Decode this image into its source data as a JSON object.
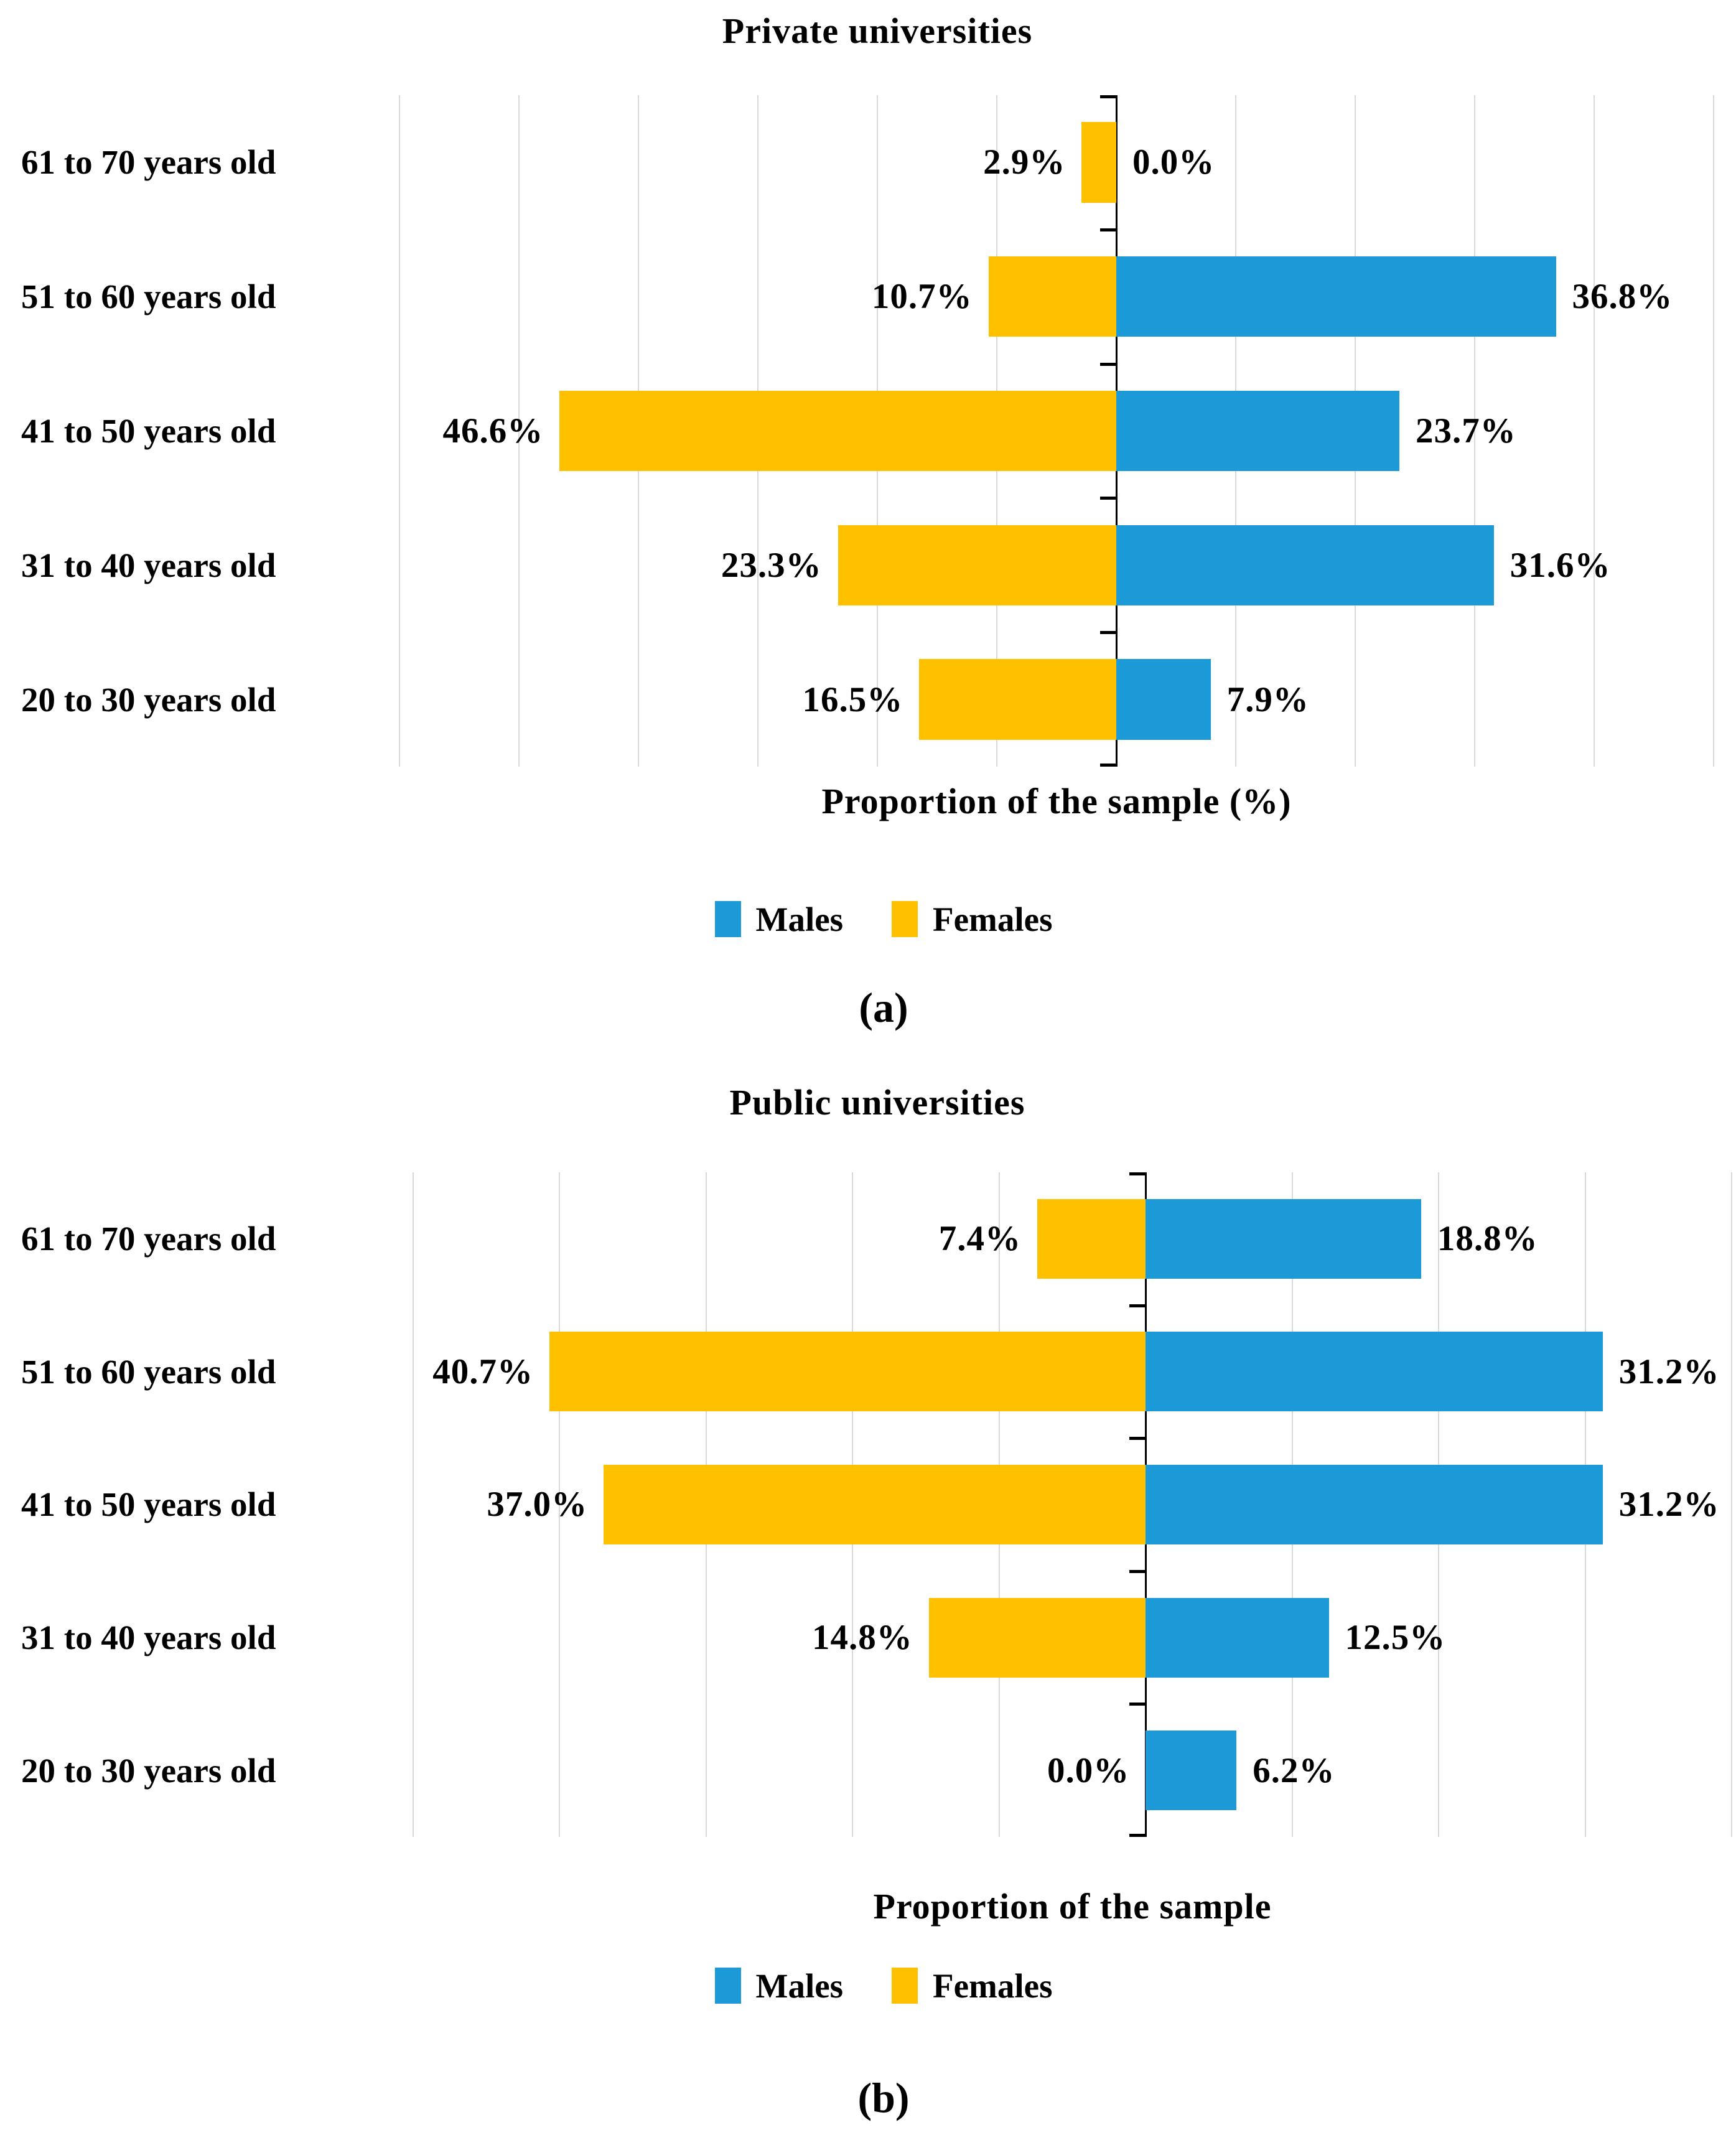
{
  "figure": {
    "background": "#ffffff",
    "text_color": "#000000"
  },
  "colors": {
    "males_blue": "#1B9AD7",
    "females_yellow": "#FFC000",
    "gridline_gray": "#D9D9D9",
    "axis_black": "#000000"
  },
  "legend": {
    "items": [
      {
        "key": "males",
        "label": "Males",
        "color": "#1B9AD7"
      },
      {
        "key": "females",
        "label": "Females",
        "color": "#FFC000"
      }
    ]
  },
  "chart_data": [
    {
      "type": "bar",
      "variant": "diverging-horizontal",
      "panel": "a",
      "title": "Private universities",
      "xlabel": "Proportion of the sample (%)",
      "caption": "(a)",
      "categories": [
        "61 to 70 years old",
        "51 to 60 years old",
        "41 to 50 years old",
        "31 to 40 years old",
        "20 to 30 years old"
      ],
      "series": [
        {
          "name": "Males",
          "side": "right",
          "color": "#1B9AD7",
          "values": [
            0.0,
            36.8,
            23.7,
            31.6,
            7.9
          ],
          "labels": [
            "0.0%",
            "36.8%",
            "23.7%",
            "31.6%",
            "7.9%"
          ]
        },
        {
          "name": "Females",
          "side": "left",
          "color": "#FFC000",
          "values": [
            2.9,
            10.7,
            46.6,
            23.3,
            16.5
          ],
          "labels": [
            "2.9%",
            "10.7%",
            "46.6%",
            "23.3%",
            "16.5%"
          ]
        }
      ],
      "xlim": [
        -60,
        50
      ],
      "grid_step": 10,
      "grid": true,
      "legend_position": "bottom"
    },
    {
      "type": "bar",
      "variant": "diverging-horizontal",
      "panel": "b",
      "title": "Public universities",
      "xlabel": "Proportion of the sample",
      "caption": "(b)",
      "categories": [
        "61 to 70 years old",
        "51 to 60 years old",
        "41 to 50 years old",
        "31 to 40 years old",
        "20 to 30 years old"
      ],
      "series": [
        {
          "name": "Males",
          "side": "right",
          "color": "#1B9AD7",
          "values": [
            18.8,
            31.2,
            31.2,
            12.5,
            6.2
          ],
          "labels": [
            "18.8%",
            "31.2%",
            "31.2%",
            "12.5%",
            "6.2%"
          ]
        },
        {
          "name": "Females",
          "side": "left",
          "color": "#FFC000",
          "values": [
            7.4,
            40.7,
            37.0,
            14.8,
            0.0
          ],
          "labels": [
            "7.4%",
            "40.7%",
            "37.0%",
            "14.8%",
            "0.0%"
          ]
        }
      ],
      "xlim": [
        -50,
        40
      ],
      "grid_step": 10,
      "grid": true,
      "legend_position": "bottom"
    }
  ]
}
